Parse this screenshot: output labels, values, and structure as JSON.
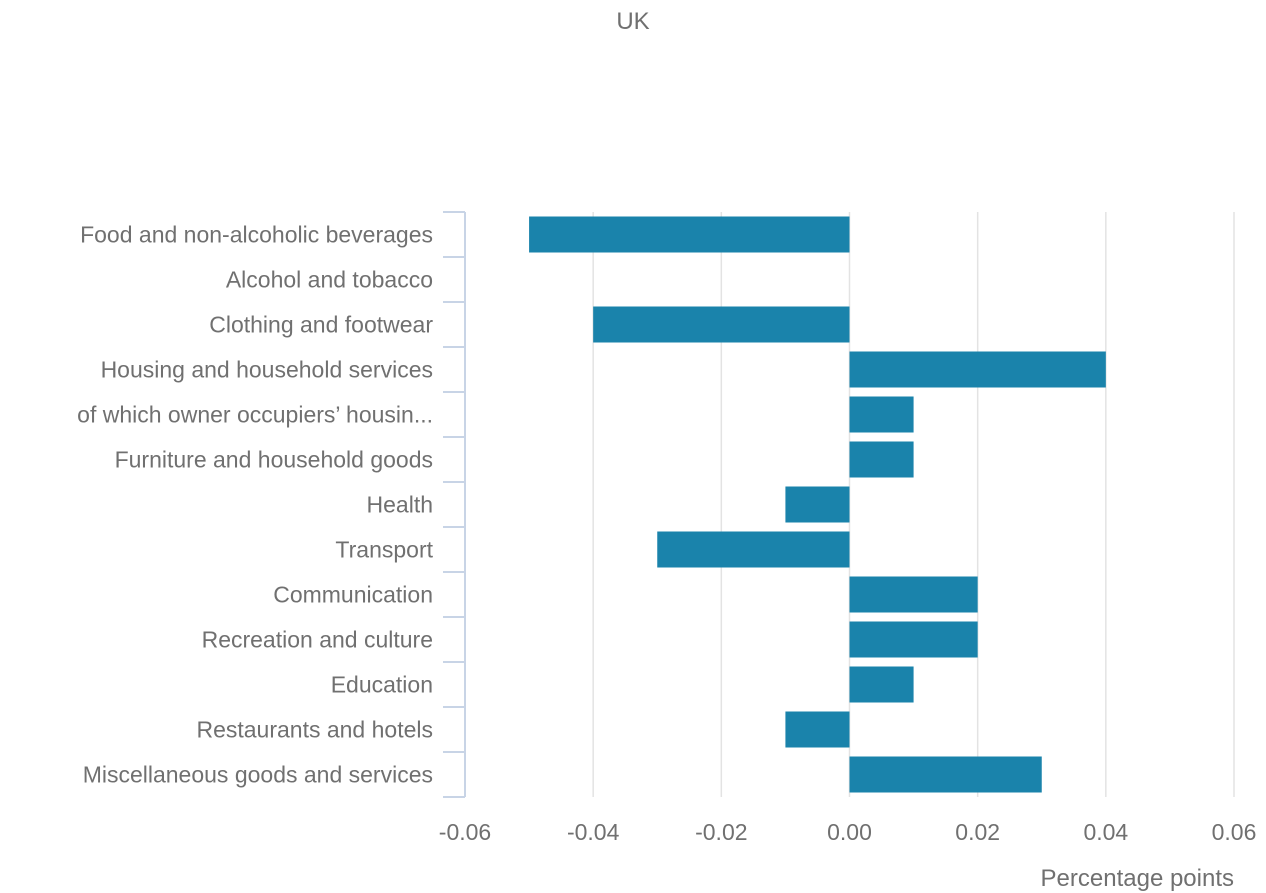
{
  "chart_data": {
    "type": "bar",
    "orientation": "horizontal",
    "title": "UK",
    "xlabel": "Percentage points",
    "ylabel": "",
    "xlim": [
      -0.06,
      0.06
    ],
    "xticks": [
      "-0.06",
      "-0.04",
      "-0.02",
      "0.00",
      "0.02",
      "0.04",
      "0.06"
    ],
    "grid": true,
    "legend": "none",
    "bar_color": "#1a83ab",
    "categories": [
      "Food and non-alcoholic beverages",
      "Alcohol and tobacco",
      "Clothing and footwear",
      "Housing and household services",
      "of which owner occupiers’ housin...",
      "Furniture and household goods",
      "Health",
      "Transport",
      "Communication",
      "Recreation and culture",
      "Education",
      "Restaurants and hotels",
      "Miscellaneous goods and services"
    ],
    "values": [
      -0.05,
      0,
      -0.04,
      0.04,
      0.01,
      0.01,
      -0.01,
      -0.03,
      0.02,
      0.02,
      0.01,
      -0.01,
      0.03
    ]
  }
}
